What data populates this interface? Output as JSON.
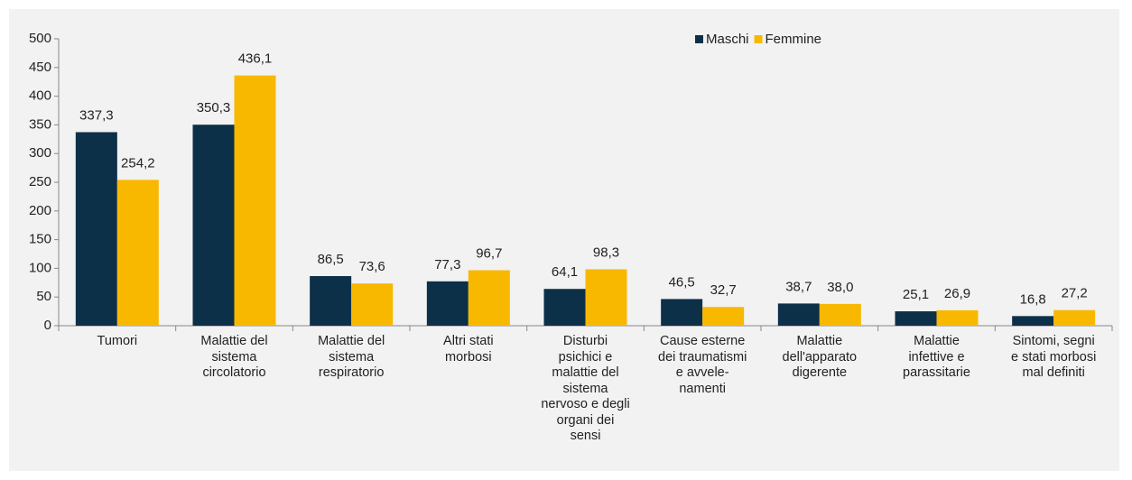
{
  "chart_data": {
    "type": "bar",
    "categories": [
      "Tumori",
      "Malattie del\nsistema\ncircolatorio",
      "Malattie del\nsistema\nrespiratorio",
      "Altri stati\nmorbosi",
      "Disturbi\npsichici e\nmalattie del\nsistema\nnervoso e degli\norgani dei\nsensi",
      "Cause esterne\ndei traumatismi\ne avvele-\nnamenti",
      "Malattie\ndell'apparato\ndigerente",
      "Malattie\ninfettive e\nparassitarie",
      "Sintomi, segni\ne stati morbosi\nmal definiti"
    ],
    "series": [
      {
        "name": "Maschi",
        "color": "#0d3049",
        "values": [
          337.3,
          350.3,
          86.5,
          77.3,
          64.1,
          46.5,
          38.7,
          25.1,
          16.8
        ],
        "value_labels": [
          "337,3",
          "350,3",
          "86,5",
          "77,3",
          "64,1",
          "46,5",
          "38,7",
          "25,1",
          "16,8"
        ]
      },
      {
        "name": "Femmine",
        "color": "#f9b800",
        "values": [
          254.2,
          436.1,
          73.6,
          96.7,
          98.3,
          32.7,
          38.0,
          26.9,
          27.2
        ],
        "value_labels": [
          "254,2",
          "436,1",
          "73,6",
          "96,7",
          "98,3",
          "32,7",
          "38,0",
          "26,9",
          "27,2"
        ]
      }
    ],
    "ylim": [
      0,
      500
    ],
    "yticks": [
      0,
      50,
      100,
      150,
      200,
      250,
      300,
      350,
      400,
      450,
      500
    ],
    "grid": false,
    "legend": "top-right"
  }
}
